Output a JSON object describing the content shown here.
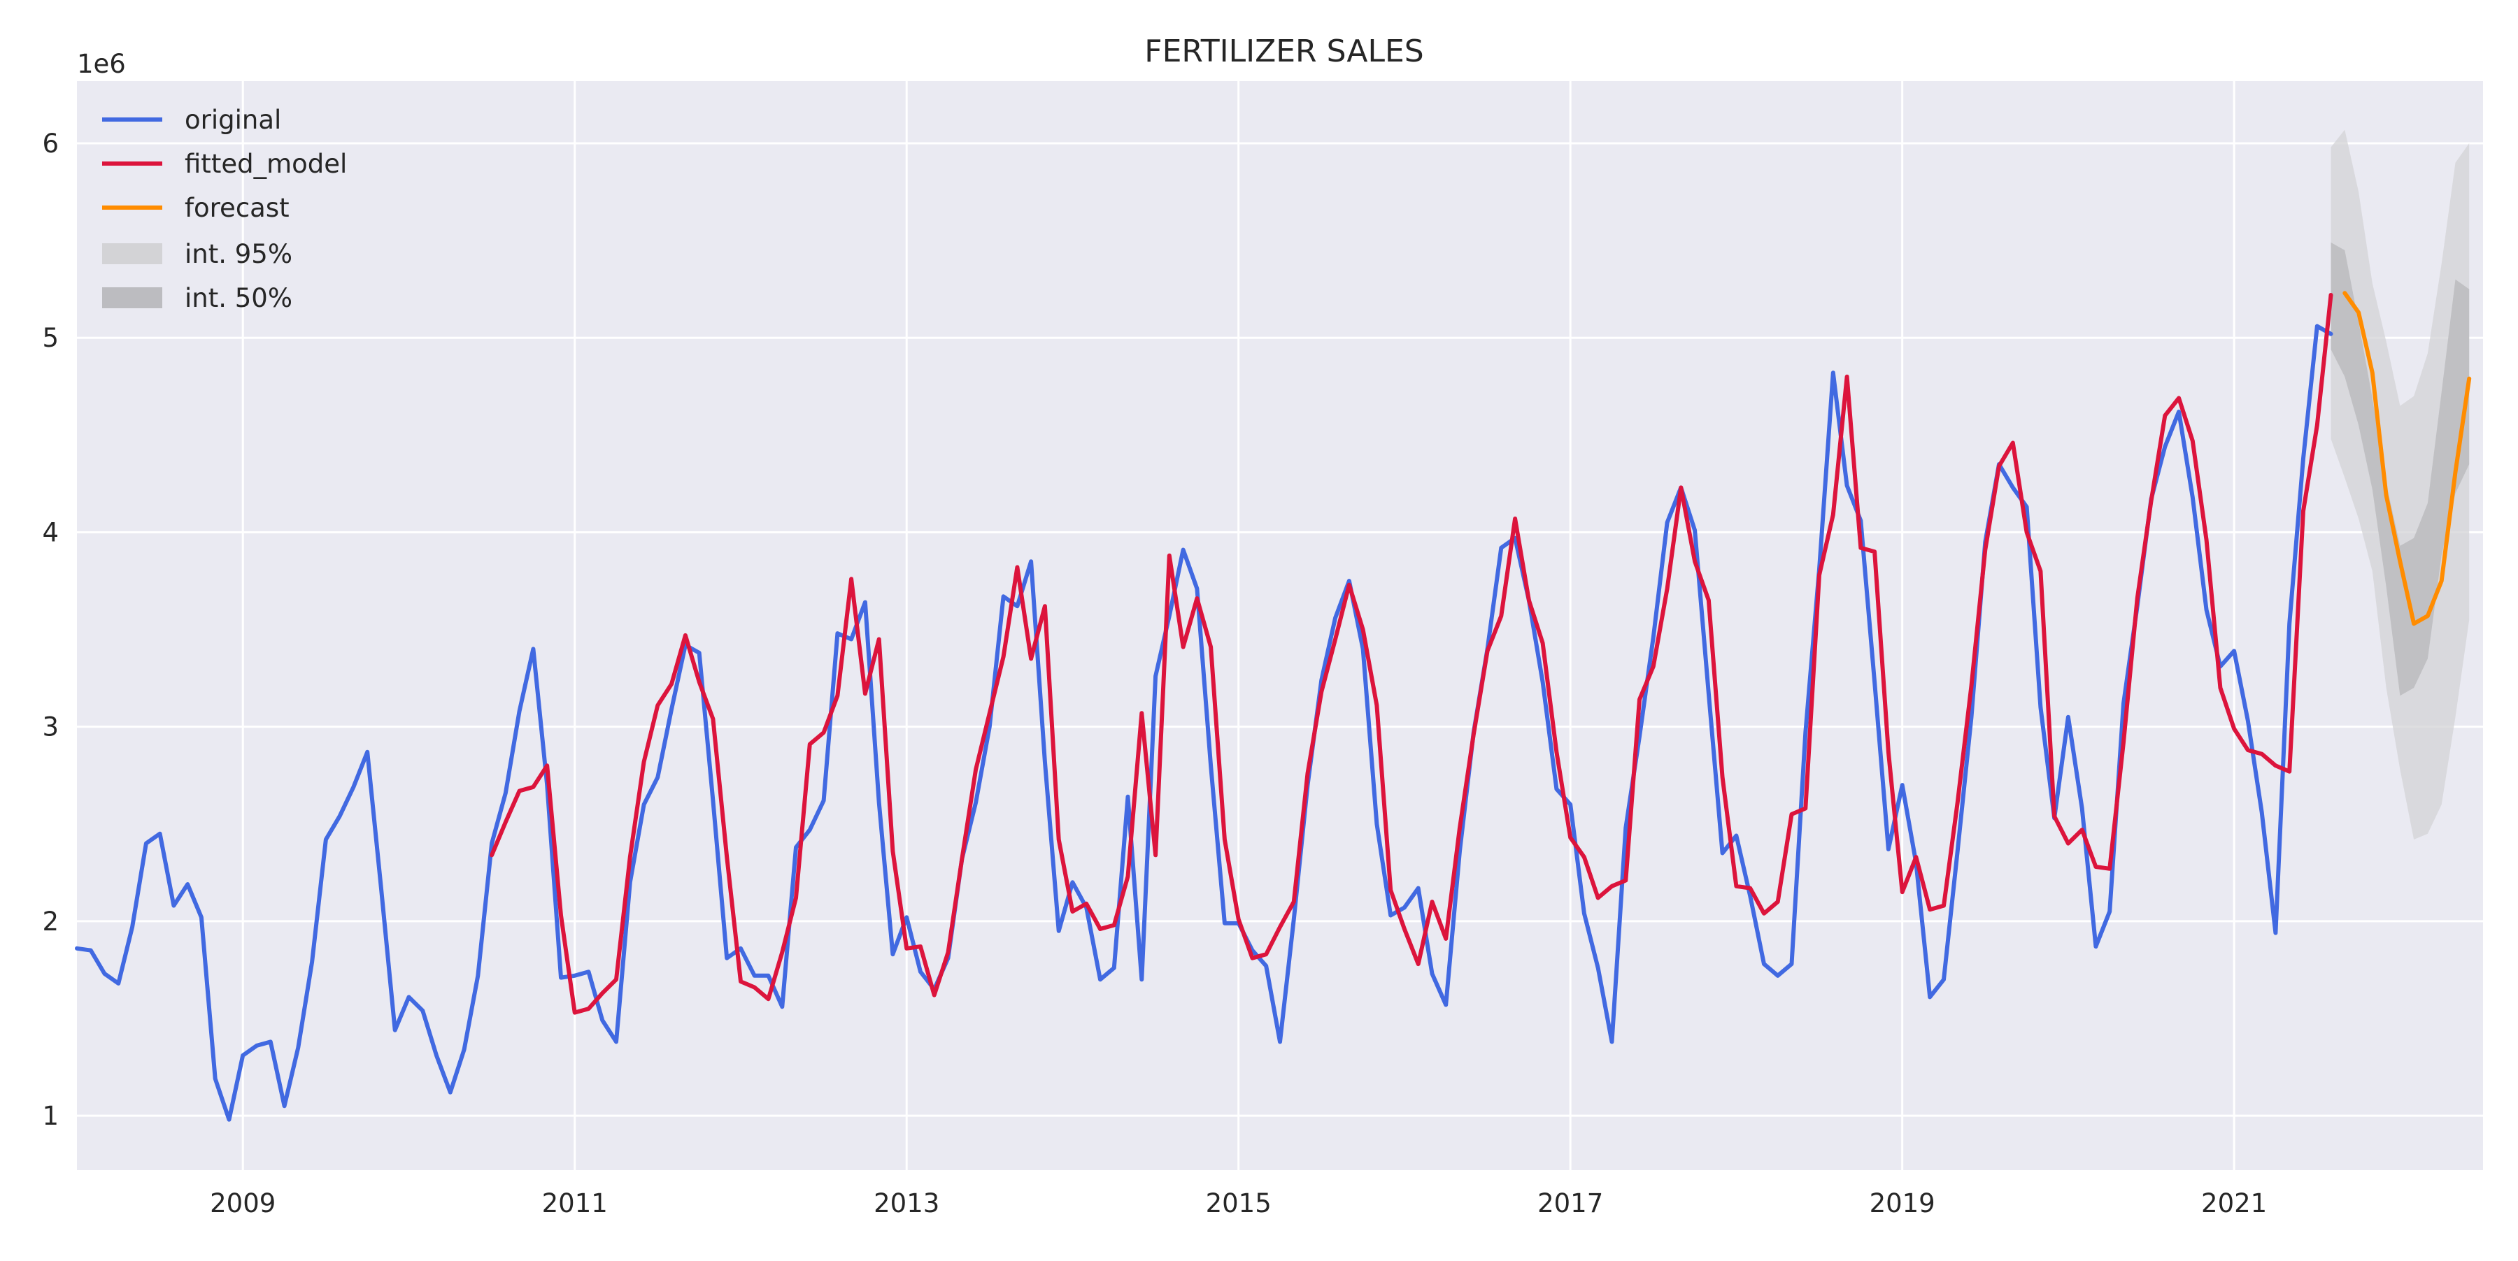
{
  "chart_data": {
    "type": "line",
    "title": "FERTILIZER SALES",
    "xlabel": "",
    "ylabel": "",
    "y_offset_label": "1e6",
    "x_tick_labels": [
      "2009",
      "2011",
      "2013",
      "2015",
      "2017",
      "2019",
      "2021"
    ],
    "y_tick_labels": [
      "1",
      "2",
      "3",
      "4",
      "5",
      "6"
    ],
    "y_ticks": [
      1,
      2,
      3,
      4,
      5,
      6
    ],
    "xlim": [
      "2008-01",
      "2022-07"
    ],
    "ylim": [
      0.72,
      6.32
    ],
    "grid": true,
    "legend_position": "top-left",
    "colors": {
      "original": "#4169e1",
      "fitted_model": "#dc143c",
      "forecast": "#ff8c00",
      "int95": "#d3d3d6",
      "int50": "#bcbcc0",
      "background": "#eaeaf2",
      "grid": "#ffffff"
    },
    "series": [
      {
        "name": "original",
        "start": "2008-01",
        "values": [
          1.86,
          1.85,
          1.73,
          1.68,
          1.97,
          2.4,
          2.45,
          2.08,
          2.19,
          2.02,
          1.19,
          0.98,
          1.31,
          1.36,
          1.38,
          1.05,
          1.35,
          1.79,
          2.42,
          2.54,
          2.69,
          2.87,
          2.17,
          1.44,
          1.61,
          1.54,
          1.31,
          1.12,
          1.34,
          1.72,
          2.4,
          2.66,
          3.08,
          3.4,
          2.7,
          1.71,
          1.72,
          1.74,
          1.49,
          1.38,
          2.2,
          2.6,
          2.74,
          3.09,
          3.42,
          3.38,
          2.62,
          1.81,
          1.86,
          1.72,
          1.72,
          1.56,
          2.38,
          2.47,
          2.62,
          3.48,
          3.45,
          3.64,
          2.61,
          1.83,
          2.02,
          1.74,
          1.65,
          1.81,
          2.32,
          2.61,
          3.0,
          3.67,
          3.62,
          3.85,
          2.82,
          1.95,
          2.2,
          2.07,
          1.7,
          1.76,
          2.64,
          1.7,
          3.26,
          3.57,
          3.91,
          3.71,
          2.8,
          1.99,
          1.99,
          1.85,
          1.77,
          1.38,
          2.01,
          2.7,
          3.24,
          3.56,
          3.75,
          3.4,
          2.5,
          2.03,
          2.07,
          2.17,
          1.73,
          1.57,
          2.36,
          2.97,
          3.4,
          3.92,
          3.97,
          3.65,
          3.23,
          2.68,
          2.6,
          2.04,
          1.76,
          1.38,
          2.48,
          2.95,
          3.46,
          4.05,
          4.23,
          4.01,
          3.17,
          2.35,
          2.44,
          2.13,
          1.78,
          1.72,
          1.78,
          2.97,
          3.81,
          4.82,
          4.24,
          4.06,
          3.23,
          2.37,
          2.7,
          2.3,
          1.61,
          1.7,
          2.36,
          3.05,
          3.95,
          4.35,
          4.23,
          4.13,
          3.1,
          2.53,
          3.05,
          2.58,
          1.87,
          2.05,
          3.12,
          3.62,
          4.17,
          4.44,
          4.62,
          4.18,
          3.6,
          3.31,
          3.39,
          3.03,
          2.56,
          1.94,
          3.53,
          4.38,
          5.06,
          5.02
        ]
      },
      {
        "name": "fitted_model",
        "start": "2010-07",
        "values": [
          2.34,
          2.51,
          2.67,
          2.69,
          2.8,
          2.03,
          1.53,
          1.55,
          1.63,
          1.7,
          2.33,
          2.82,
          3.11,
          3.22,
          3.47,
          3.23,
          3.04,
          2.33,
          1.69,
          1.66,
          1.6,
          1.84,
          2.12,
          2.91,
          2.97,
          3.16,
          3.76,
          3.17,
          3.45,
          2.36,
          1.86,
          1.87,
          1.62,
          1.84,
          2.32,
          2.78,
          3.07,
          3.36,
          3.82,
          3.35,
          3.62,
          2.42,
          2.05,
          2.09,
          1.96,
          1.98,
          2.23,
          3.07,
          2.34,
          3.88,
          3.41,
          3.66,
          3.41,
          2.42,
          2.01,
          1.81,
          1.83,
          1.97,
          2.1,
          2.76,
          3.18,
          3.45,
          3.73,
          3.5,
          3.11,
          2.16,
          1.96,
          1.78,
          2.1,
          1.91,
          2.48,
          2.96,
          3.39,
          3.57,
          4.07,
          3.65,
          3.43,
          2.87,
          2.43,
          2.33,
          2.12,
          2.18,
          2.21,
          3.14,
          3.31,
          3.71,
          4.23,
          3.85,
          3.65,
          2.74,
          2.18,
          2.17,
          2.04,
          2.1,
          2.55,
          2.58,
          3.78,
          4.09,
          4.8,
          3.92,
          3.9,
          2.87,
          2.15,
          2.33,
          2.06,
          2.08,
          2.61,
          3.21,
          3.91,
          4.34,
          4.46,
          4.0,
          3.8,
          2.54,
          2.4,
          2.47,
          2.28,
          2.27,
          2.92,
          3.66,
          4.16,
          4.6,
          4.69,
          4.47,
          3.96,
          3.2,
          2.99,
          2.88,
          2.86,
          2.8,
          2.77,
          4.11,
          4.55,
          5.22
        ]
      },
      {
        "name": "forecast",
        "start": "2021-09",
        "values": [
          5.23,
          5.13,
          4.82,
          4.19,
          3.85,
          3.53,
          3.57,
          3.75,
          4.31,
          4.79
        ]
      }
    ],
    "intervals": [
      {
        "name": "int. 95%",
        "start": "2021-08",
        "lower": [
          4.48,
          4.28,
          4.07,
          3.8,
          3.2,
          2.78,
          2.42,
          2.45,
          2.6,
          3.05,
          3.55
        ],
        "upper": [
          5.98,
          6.07,
          5.75,
          5.28,
          4.98,
          4.65,
          4.7,
          4.92,
          5.38,
          5.9,
          6.0
        ]
      },
      {
        "name": "int. 50%",
        "start": "2021-08",
        "lower": [
          4.94,
          4.8,
          4.55,
          4.22,
          3.72,
          3.16,
          3.2,
          3.35,
          3.88,
          4.2,
          4.35
        ],
        "upper": [
          5.49,
          5.45,
          5.08,
          4.69,
          4.25,
          3.93,
          3.97,
          4.15,
          4.72,
          5.3,
          5.25
        ]
      }
    ],
    "legend": [
      "original",
      "fitted_model",
      "forecast",
      "int. 95%",
      "int. 50%"
    ]
  }
}
